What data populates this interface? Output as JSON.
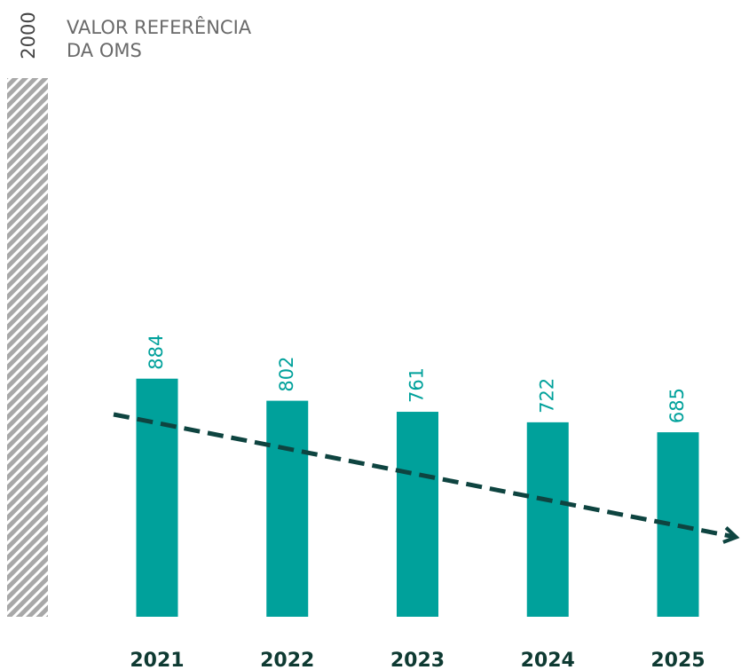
{
  "chart_data": {
    "type": "bar",
    "reference": {
      "value": 2000,
      "label": [
        "VALOR REFERÊNCIA",
        "DA OMS"
      ],
      "color": "#a8a8a8"
    },
    "categories": [
      "2021",
      "2022",
      "2023",
      "2024",
      "2025"
    ],
    "values": [
      884,
      802,
      761,
      722,
      685
    ],
    "color": "#00a19b",
    "ylim": [
      0,
      2000
    ]
  }
}
